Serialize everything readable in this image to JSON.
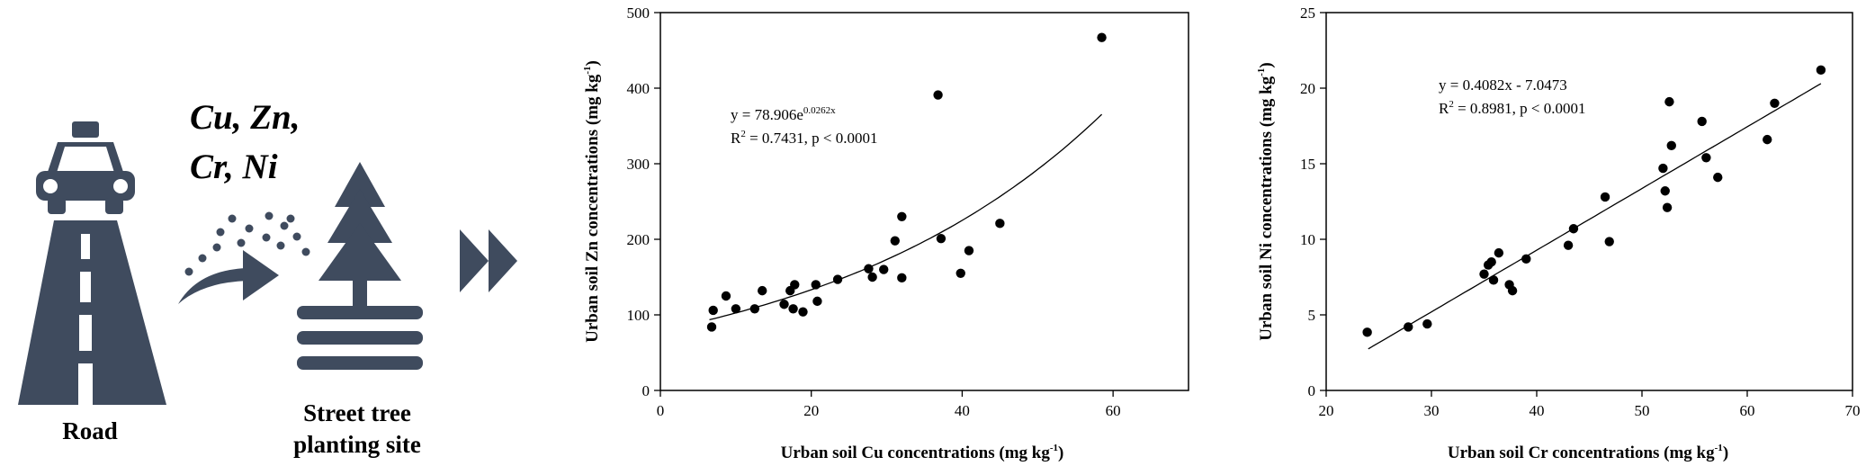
{
  "illustration": {
    "metals_line1": "Cu, Zn,",
    "metals_line2": "Cr, Ni",
    "road_label": "Road",
    "site_label_line1": "Street tree",
    "site_label_line2": "planting site",
    "icon_color": "#3f4b5e"
  },
  "chart_data": [
    {
      "type": "scatter",
      "title": "",
      "xlabel": "Urban soil Cu concentrations (mg kg",
      "xlabel_sup": "-1",
      "xlabel_end": ")",
      "ylabel": "Urban soil Zn concentrations (mg kg",
      "ylabel_sup": "-1",
      "ylabel_end": ")",
      "xlim": [
        0,
        70
      ],
      "ylim": [
        0,
        500
      ],
      "xticks": [
        0,
        20,
        40,
        60
      ],
      "yticks": [
        0,
        100,
        200,
        300,
        400,
        500
      ],
      "grid": false,
      "equation_line1_base": "y = 78.906e",
      "equation_line1_sup": "0.0262x",
      "equation_line2_base": "R",
      "equation_line2_sup": "2",
      "equation_line2_rest": " = 0.7431, p < 0.0001",
      "fit": {
        "kind": "exponential",
        "a": 78.906,
        "b": 0.0262,
        "x_range": [
          6.5,
          58.5
        ]
      },
      "points": [
        [
          6.8,
          84
        ],
        [
          7.0,
          106
        ],
        [
          8.7,
          125
        ],
        [
          10.0,
          108
        ],
        [
          12.5,
          108
        ],
        [
          13.5,
          132
        ],
        [
          16.4,
          114
        ],
        [
          17.2,
          132
        ],
        [
          17.6,
          108
        ],
        [
          17.8,
          140
        ],
        [
          18.9,
          104
        ],
        [
          20.6,
          140
        ],
        [
          20.8,
          118
        ],
        [
          23.5,
          147
        ],
        [
          27.6,
          161
        ],
        [
          28.1,
          150
        ],
        [
          29.6,
          160
        ],
        [
          31.1,
          198
        ],
        [
          32.0,
          230
        ],
        [
          32.0,
          149
        ],
        [
          36.8,
          391
        ],
        [
          37.2,
          201
        ],
        [
          39.8,
          155
        ],
        [
          40.9,
          185
        ],
        [
          45.0,
          221
        ],
        [
          58.5,
          467
        ]
      ]
    },
    {
      "type": "scatter",
      "title": "",
      "xlabel": "Urban soil Cr concentrations (mg kg",
      "xlabel_sup": "-1",
      "xlabel_end": ")",
      "ylabel": "Urban soil Ni concentrations (mg kg",
      "ylabel_sup": "-1",
      "ylabel_end": ")",
      "xlim": [
        20,
        70
      ],
      "ylim": [
        0,
        25
      ],
      "xticks": [
        20,
        30,
        40,
        50,
        60,
        70
      ],
      "yticks": [
        0,
        5,
        10,
        15,
        20,
        25
      ],
      "grid": false,
      "equation_line1_base": "y = 0.4082x - 7.0473",
      "equation_line1_sup": "",
      "equation_line2_base": "R",
      "equation_line2_sup": "2",
      "equation_line2_rest": " = 0.8981, p < 0.0001",
      "fit": {
        "kind": "linear",
        "slope": 0.4082,
        "intercept": -7.0473,
        "x_range": [
          24,
          67
        ]
      },
      "points": [
        [
          23.9,
          3.85
        ],
        [
          27.8,
          4.2
        ],
        [
          29.6,
          4.4
        ],
        [
          35.0,
          7.7
        ],
        [
          35.4,
          8.3
        ],
        [
          35.7,
          8.5
        ],
        [
          35.9,
          7.3
        ],
        [
          36.4,
          9.1
        ],
        [
          37.4,
          7.0
        ],
        [
          37.7,
          6.6
        ],
        [
          39.0,
          8.7
        ],
        [
          43.0,
          9.6
        ],
        [
          43.5,
          10.7
        ],
        [
          46.5,
          12.8
        ],
        [
          46.9,
          9.85
        ],
        [
          52.0,
          14.7
        ],
        [
          52.2,
          13.2
        ],
        [
          52.4,
          12.1
        ],
        [
          52.6,
          19.1
        ],
        [
          52.8,
          16.2
        ],
        [
          55.7,
          17.8
        ],
        [
          56.1,
          15.4
        ],
        [
          57.2,
          14.1
        ],
        [
          61.9,
          16.6
        ],
        [
          62.6,
          19.0
        ],
        [
          67.0,
          21.2
        ]
      ]
    }
  ]
}
